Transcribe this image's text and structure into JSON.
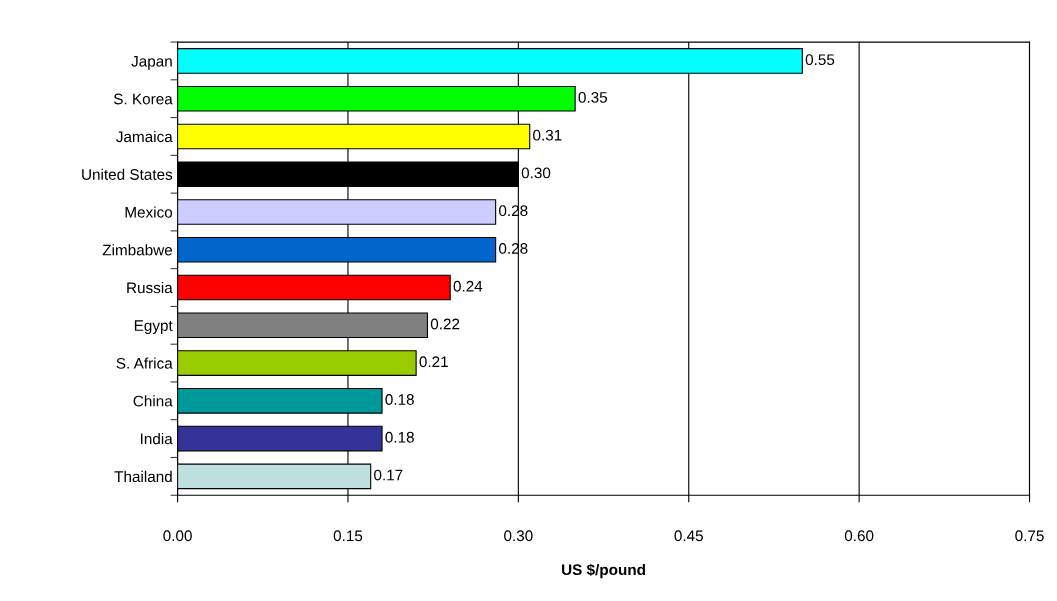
{
  "chart_data": {
    "type": "bar",
    "orientation": "horizontal",
    "xlabel": "US $/pound",
    "categories": [
      "Japan",
      "S. Korea",
      "Jamaica",
      "United States",
      "Mexico",
      "Zimbabwe",
      "Russia",
      "Egypt",
      "S. Africa",
      "China",
      "India",
      "Thailand"
    ],
    "values": [
      0.55,
      0.35,
      0.31,
      0.3,
      0.28,
      0.28,
      0.24,
      0.22,
      0.21,
      0.18,
      0.18,
      0.17
    ],
    "value_labels": [
      "0.55",
      "0.35",
      "0.31",
      "0.30",
      "0.28",
      "0.28",
      "0.24",
      "0.22",
      "0.21",
      "0.18",
      "0.18",
      "0.17"
    ],
    "colors": [
      "#00ffff",
      "#00ff00",
      "#ffff00",
      "#000000",
      "#ccccff",
      "#0066cc",
      "#ff0000",
      "#808080",
      "#99cc00",
      "#009999",
      "#333399",
      "#c0e0e0"
    ],
    "xlim": [
      0,
      0.75
    ],
    "xticks": [
      {
        "value": 0,
        "label": "0.00"
      },
      {
        "value": 0.15,
        "label": "0.15"
      },
      {
        "value": 0.3,
        "label": "0.30"
      },
      {
        "value": 0.45,
        "label": "0.45"
      },
      {
        "value": 0.6,
        "label": "0.60"
      },
      {
        "value": 0.75,
        "label": "0.75"
      }
    ],
    "grid": "x",
    "legend": false
  }
}
